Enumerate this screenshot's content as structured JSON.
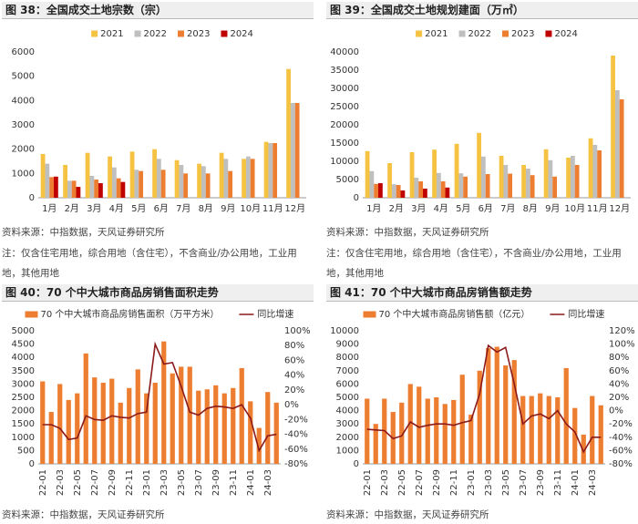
{
  "chart_data": [
    {
      "type": "bar",
      "title": "图 38：全国成交土地宗数（宗）",
      "categories": [
        "1月",
        "2月",
        "3月",
        "4月",
        "5月",
        "6月",
        "7月",
        "8月",
        "9月",
        "10月",
        "11月",
        "12月"
      ],
      "series": [
        {
          "name": "2021",
          "color": "#f5c242",
          "values": [
            1800,
            1350,
            1850,
            1700,
            1900,
            2000,
            1550,
            1400,
            1850,
            1600,
            2300,
            5300
          ]
        },
        {
          "name": "2022",
          "color": "#bfbfbf",
          "values": [
            1400,
            700,
            900,
            1250,
            1150,
            1600,
            1350,
            1300,
            1600,
            1700,
            2250,
            3900
          ]
        },
        {
          "name": "2023",
          "color": "#ed7d31",
          "values": [
            850,
            700,
            750,
            800,
            1100,
            1150,
            1000,
            1000,
            1100,
            1600,
            2250,
            3900
          ]
        },
        {
          "name": "2024",
          "color": "#c00000",
          "values": [
            870,
            450,
            600,
            650,
            null,
            null,
            null,
            null,
            null,
            null,
            null,
            null
          ]
        }
      ],
      "ylim": [
        0,
        6000
      ],
      "yticks": [
        0,
        1000,
        2000,
        3000,
        4000,
        5000,
        6000
      ],
      "source": "资料来源：中指数据，天风证券研究所",
      "note": "注：仅含住宅用地，综合用地（含住宅），不含商业/办公用地，工业用地，其他用地"
    },
    {
      "type": "bar",
      "title": "图 39：全国成交土地规划建面（万㎡）",
      "categories": [
        "1月",
        "2月",
        "3月",
        "4月",
        "5月",
        "6月",
        "7月",
        "8月",
        "9月",
        "10月",
        "11月",
        "12月"
      ],
      "series": [
        {
          "name": "2021",
          "color": "#f5c242",
          "values": [
            12800,
            9500,
            12500,
            13200,
            14800,
            17800,
            11500,
            9000,
            13300,
            11000,
            16300,
            39000
          ]
        },
        {
          "name": "2022",
          "color": "#bfbfbf",
          "values": [
            7300,
            3700,
            5500,
            6800,
            6700,
            11300,
            9000,
            8000,
            10300,
            11500,
            14500,
            29500
          ]
        },
        {
          "name": "2023",
          "color": "#ed7d31",
          "values": [
            3800,
            3500,
            4500,
            4500,
            5800,
            6500,
            6600,
            6200,
            5800,
            9000,
            13000,
            27000
          ]
        },
        {
          "name": "2024",
          "color": "#c00000",
          "values": [
            4000,
            2000,
            2500,
            2800,
            null,
            null,
            null,
            null,
            null,
            null,
            null,
            null
          ]
        }
      ],
      "ylim": [
        0,
        40000
      ],
      "yticks": [
        0,
        5000,
        10000,
        15000,
        20000,
        25000,
        30000,
        35000,
        40000
      ],
      "source": "资料来源：中指数据，天风证券研究所",
      "note": "注：仅含住宅用地，综合用地（含住宅），不含商业/办公用地，工业用地，其他用地"
    },
    {
      "type": "combo",
      "title": "图 40：70 个中大城市商品房销售面积走势",
      "categories": [
        "22-01",
        null,
        "22-03",
        null,
        "22-05",
        null,
        "22-07",
        null,
        "22-09",
        null,
        "22-11",
        null,
        "23-01",
        null,
        "23-03",
        null,
        "23-05",
        null,
        "23-07",
        null,
        "23-09",
        null,
        "23-11",
        null,
        "24-01",
        null,
        "24-03",
        null
      ],
      "series": [
        {
          "name": "70 个中大城市商品房销售面积（万平方米）",
          "type": "bar",
          "color": "#ed7d31",
          "values": [
            3100,
            1950,
            3000,
            2400,
            2650,
            4150,
            3250,
            3050,
            3200,
            2300,
            2850,
            3550,
            2650,
            3050,
            4600,
            3400,
            3650,
            3650,
            2750,
            2800,
            2950,
            2650,
            2850,
            3600,
            2350,
            1350,
            2700,
            2300
          ]
        },
        {
          "name": "同比增速",
          "type": "line",
          "axis": "y2",
          "color": "#8b1a1a",
          "values": [
            -27,
            -27,
            -32,
            -47,
            -45,
            -15,
            -20,
            -21,
            -15,
            -17,
            -18,
            -12,
            -10,
            82,
            55,
            57,
            25,
            -10,
            -14,
            -5,
            -2,
            -3,
            -5,
            0,
            -18,
            -62,
            -42,
            -40
          ]
        }
      ],
      "ylim": [
        0,
        5000
      ],
      "yticks": [
        0,
        500,
        1000,
        1500,
        2000,
        2500,
        3000,
        3500,
        4000,
        4500,
        5000
      ],
      "y2lim": [
        -80,
        100
      ],
      "y2ticks": [
        {
          "value": -80,
          "label": "-80%"
        },
        {
          "value": -60,
          "label": "-60%"
        },
        {
          "value": -40,
          "label": "-40%"
        },
        {
          "value": -20,
          "label": "-20%"
        },
        {
          "value": 0,
          "label": "0%"
        },
        {
          "value": 20,
          "label": "20%"
        },
        {
          "value": 40,
          "label": "40%"
        },
        {
          "value": 60,
          "label": "60%"
        },
        {
          "value": 80,
          "label": "80%"
        },
        {
          "value": 100,
          "label": "100%"
        }
      ],
      "source": "资料来源：中指数据，天风证券研究所"
    },
    {
      "type": "combo",
      "title": "图 41：70 个中大城市商品房销售额走势",
      "categories": [
        "22-01",
        null,
        "22-03",
        null,
        "22-05",
        null,
        "22-07",
        null,
        "22-09",
        null,
        "22-11",
        null,
        "23-01",
        null,
        "23-03",
        null,
        "23-05",
        null,
        "23-07",
        null,
        "23-09",
        null,
        "23-11",
        null,
        "24-01",
        null,
        "24-03",
        null
      ],
      "series": [
        {
          "name": "70 个中大城市商品房销售额（亿元）",
          "type": "bar",
          "color": "#ed7d31",
          "values": [
            4900,
            3000,
            4900,
            3900,
            4600,
            6000,
            5800,
            4900,
            5000,
            4500,
            4800,
            6700,
            3700,
            7000,
            8700,
            8800,
            7400,
            7800,
            5100,
            5100,
            5300,
            5100,
            5000,
            7200,
            4200,
            2200,
            5100,
            4400
          ]
        },
        {
          "name": "同比增速",
          "type": "line",
          "axis": "y2",
          "color": "#8b1a1a",
          "values": [
            -28,
            -29,
            -30,
            -42,
            -38,
            -17,
            -25,
            -22,
            -20,
            -20,
            -22,
            -18,
            -15,
            25,
            98,
            88,
            95,
            40,
            -20,
            -8,
            -5,
            -12,
            0,
            -20,
            -32,
            -62,
            -40,
            -40
          ]
        }
      ],
      "ylim": [
        0,
        10000
      ],
      "yticks": [
        0,
        1000,
        2000,
        3000,
        4000,
        5000,
        6000,
        7000,
        8000,
        9000,
        10000
      ],
      "y2lim": [
        -80,
        120
      ],
      "y2ticks": [
        {
          "value": -80,
          "label": "-80%"
        },
        {
          "value": -60,
          "label": "-60%"
        },
        {
          "value": -40,
          "label": "-40%"
        },
        {
          "value": -20,
          "label": "-20%"
        },
        {
          "value": 0,
          "label": "0%"
        },
        {
          "value": 20,
          "label": "20%"
        },
        {
          "value": 40,
          "label": "40%"
        },
        {
          "value": 60,
          "label": "60%"
        },
        {
          "value": 80,
          "label": "80%"
        },
        {
          "value": 100,
          "label": "100%"
        },
        {
          "value": 120,
          "label": "120%"
        }
      ],
      "source": "资料来源：中指数据，天风证券研究所"
    }
  ]
}
